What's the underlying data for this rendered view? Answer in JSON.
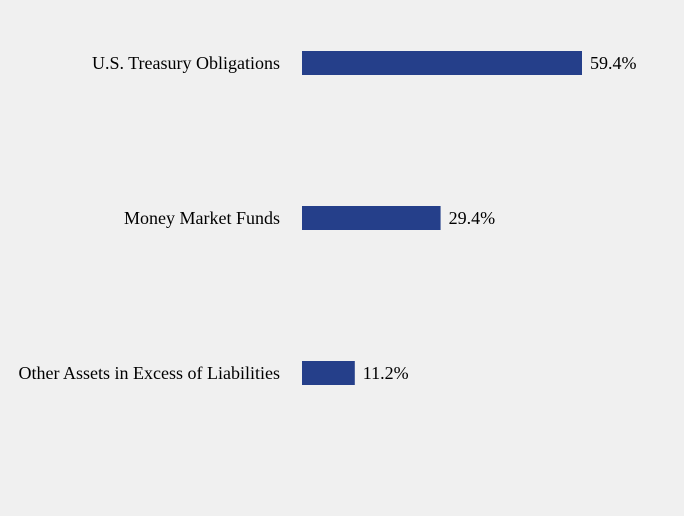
{
  "chart_data": {
    "type": "bar",
    "orientation": "horizontal",
    "categories": [
      "U.S. Treasury Obligations",
      "Money Market Funds",
      "Other Assets in Excess of Liabilities"
    ],
    "values": [
      59.4,
      29.4,
      11.2
    ],
    "value_labels": [
      "59.4%",
      "29.4%",
      "11.2%"
    ],
    "title": "",
    "xlabel": "",
    "ylabel": "",
    "xlim": [
      0,
      100
    ],
    "grid": false,
    "legend": "none",
    "colors": {
      "bar": "#253f8a",
      "background": "#f0f0f0",
      "text": "#000000"
    }
  }
}
